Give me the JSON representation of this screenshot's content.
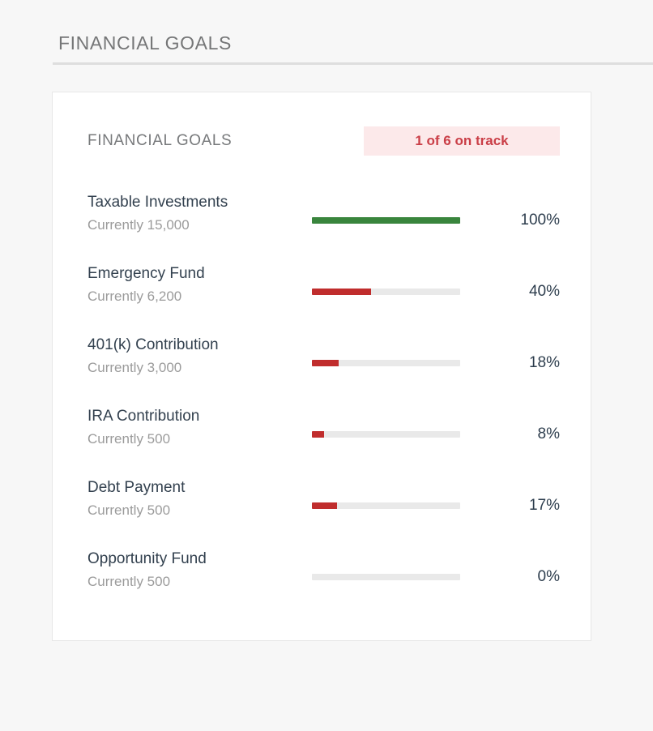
{
  "page": {
    "title": "FINANCIAL GOALS"
  },
  "card": {
    "title": "FINANCIAL GOALS",
    "badge": {
      "label": "1 of 6 on track",
      "bg_color": "#fce9ea",
      "text_color": "#ca3e47"
    },
    "colors": {
      "on_track": "#39853d",
      "off_track": "#c02d2d",
      "track": "#e9e9e9"
    },
    "goals": [
      {
        "name": "Taxable Investments",
        "current_label": "Currently 15,000",
        "percent": 100,
        "percent_label": "100%",
        "status": "on_track"
      },
      {
        "name": "Emergency Fund",
        "current_label": "Currently 6,200",
        "percent": 40,
        "percent_label": "40%",
        "status": "off_track"
      },
      {
        "name": "401(k) Contribution",
        "current_label": "Currently 3,000",
        "percent": 18,
        "percent_label": "18%",
        "status": "off_track"
      },
      {
        "name": "IRA Contribution",
        "current_label": "Currently 500",
        "percent": 8,
        "percent_label": "8%",
        "status": "off_track"
      },
      {
        "name": "Debt Payment",
        "current_label": "Currently 500",
        "percent": 17,
        "percent_label": "17%",
        "status": "off_track"
      },
      {
        "name": "Opportunity Fund",
        "current_label": "Currently 500",
        "percent": 0,
        "percent_label": "0%",
        "status": "off_track"
      }
    ]
  }
}
